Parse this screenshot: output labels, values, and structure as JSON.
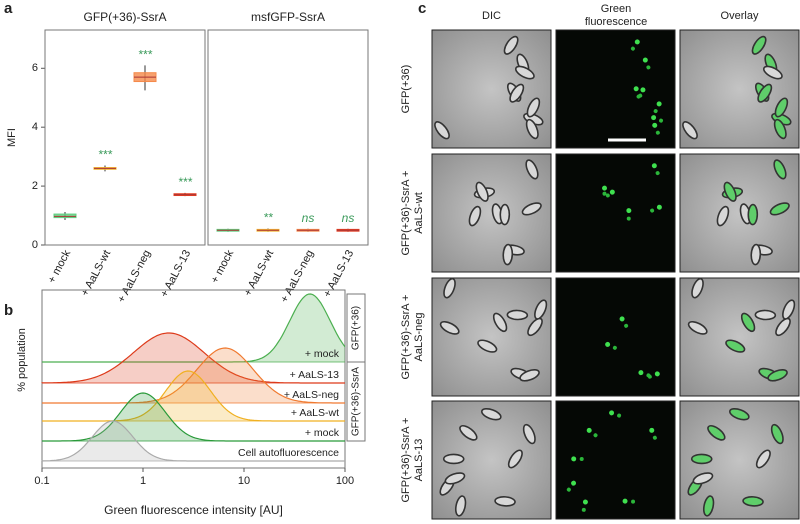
{
  "panel_labels": [
    "a",
    "b",
    "c"
  ],
  "chart_data": [
    {
      "type": "box",
      "ylabel": "MFI",
      "ylim": [
        0,
        7.3
      ],
      "yticks": [
        0,
        2,
        4,
        6
      ],
      "categories": [
        "+ mock",
        "+ AaLS-wt",
        "+ AaLS-neg",
        "+ AaLS-13"
      ],
      "colors": [
        "#5ccf7f",
        "#f2b531",
        "#f58a4a",
        "#e23b1f"
      ],
      "facets": [
        {
          "title": "GFP(+36)-SsrA",
          "boxes": [
            {
              "low": 0.85,
              "q1": 0.93,
              "median": 0.97,
              "q3": 1.05,
              "high": 1.12
            },
            {
              "low": 2.5,
              "q1": 2.57,
              "median": 2.6,
              "q3": 2.63,
              "high": 2.7
            },
            {
              "low": 5.25,
              "q1": 5.55,
              "median": 5.7,
              "q3": 5.85,
              "high": 6.1
            },
            {
              "low": 1.66,
              "q1": 1.68,
              "median": 1.71,
              "q3": 1.74,
              "high": 1.77
            }
          ],
          "significance": [
            null,
            "***",
            "***",
            "***"
          ]
        },
        {
          "title": "msfGFP-SsrA",
          "boxes": [
            {
              "low": 0.45,
              "q1": 0.47,
              "median": 0.5,
              "q3": 0.53,
              "high": 0.55
            },
            {
              "low": 0.45,
              "q1": 0.47,
              "median": 0.5,
              "q3": 0.53,
              "high": 0.56
            },
            {
              "low": 0.45,
              "q1": 0.47,
              "median": 0.5,
              "q3": 0.53,
              "high": 0.55
            },
            {
              "low": 0.45,
              "q1": 0.47,
              "median": 0.5,
              "q3": 0.53,
              "high": 0.55
            }
          ],
          "significance": [
            null,
            "**",
            "ns",
            "ns"
          ]
        }
      ]
    },
    {
      "type": "density",
      "xlabel": "Green fluorescence intensity [AU]",
      "ylabel": "% population",
      "log_x": true,
      "xlim": [
        0.1,
        100
      ],
      "xticks": [
        0.1,
        1,
        10,
        100
      ],
      "series": [
        {
          "name": "+ mock",
          "color": "#4caf50",
          "peak": 45
        },
        {
          "name": "+ AaLS-13",
          "color": "#dd3a1a",
          "peak": 1.8
        },
        {
          "name": "+ AaLS-neg",
          "color": "#f07a30",
          "peak": 6.5
        },
        {
          "name": "+ AaLS-wt",
          "color": "#f0b020",
          "peak": 2.8
        },
        {
          "name": "+ mock",
          "color": "#2a9a3a",
          "peak": 1.0
        },
        {
          "name": "Cell autofluorescence",
          "color": "#aaaaaa",
          "peak": 0.5
        }
      ],
      "groups": [
        "GFP(+36)",
        "GFP(+36)-SsrA"
      ]
    }
  ],
  "micrographs": {
    "columns": [
      "DIC",
      "Green fluorescence",
      "Overlay"
    ],
    "rows": [
      "GFP(+36)",
      "GFP(+36)-SsrA + AaLS-wt",
      "GFP(+36)-SsrA + AaLS-neg",
      "GFP(+36)-SsrA + AaLS-13"
    ]
  }
}
